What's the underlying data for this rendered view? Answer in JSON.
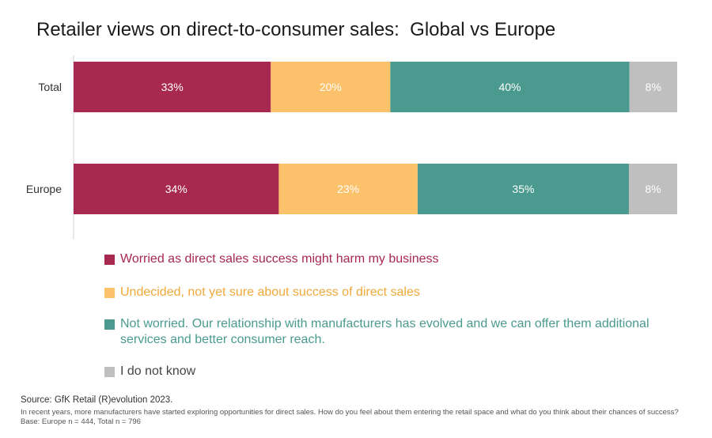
{
  "title": "Retailer views on direct-to-consumer sales:  Global vs Europe",
  "colors": {
    "worried": "#A8294F",
    "undecided": "#FBC26B",
    "not_worried": "#4A9A8F",
    "dont_know": "#BFBFBF"
  },
  "chart_data": {
    "type": "bar",
    "orientation": "horizontal",
    "stacked": true,
    "categories": [
      "Total",
      "Europe"
    ],
    "series": [
      {
        "name": "Worried as direct sales success might harm my business",
        "values": [
          33,
          34
        ],
        "color": "#A8294F"
      },
      {
        "name": "Undecided, not yet sure about success of direct sales",
        "values": [
          20,
          23
        ],
        "color": "#FBC26B"
      },
      {
        "name": "Not worried. Our relationship with manufacturers has evolved and we can offer them additional services and better consumer reach.",
        "values": [
          40,
          35
        ],
        "color": "#4A9A8F"
      },
      {
        "name": "I do not know",
        "values": [
          8,
          8
        ],
        "color": "#BFBFBF"
      }
    ],
    "value_suffix": "%",
    "legend_position": "bottom",
    "grid": false
  },
  "legend": [
    {
      "label": "Worried as direct sales success might harm my business",
      "color": "#A8294F",
      "text_color": "#A8294F"
    },
    {
      "label": "Undecided, not yet sure about success of direct sales",
      "color": "#FBC26B",
      "text_color": "#F0A93A"
    },
    {
      "label": "Not worried. Our relationship with manufacturers has evolved and we can offer them additional services and better consumer reach.",
      "color": "#4A9A8F",
      "text_color": "#4A9A8F"
    },
    {
      "label": " I do not know",
      "color": "#BFBFBF",
      "text_color": "#444444"
    }
  ],
  "source": "Source: GfK Retail (R)evolution 2023.",
  "note": "In recent years, more manufacturers have started exploring opportunities for direct sales. How do you feel about them entering the retail space and what do you think about their chances of success? Base: Europe n = 444, Total n = 796"
}
